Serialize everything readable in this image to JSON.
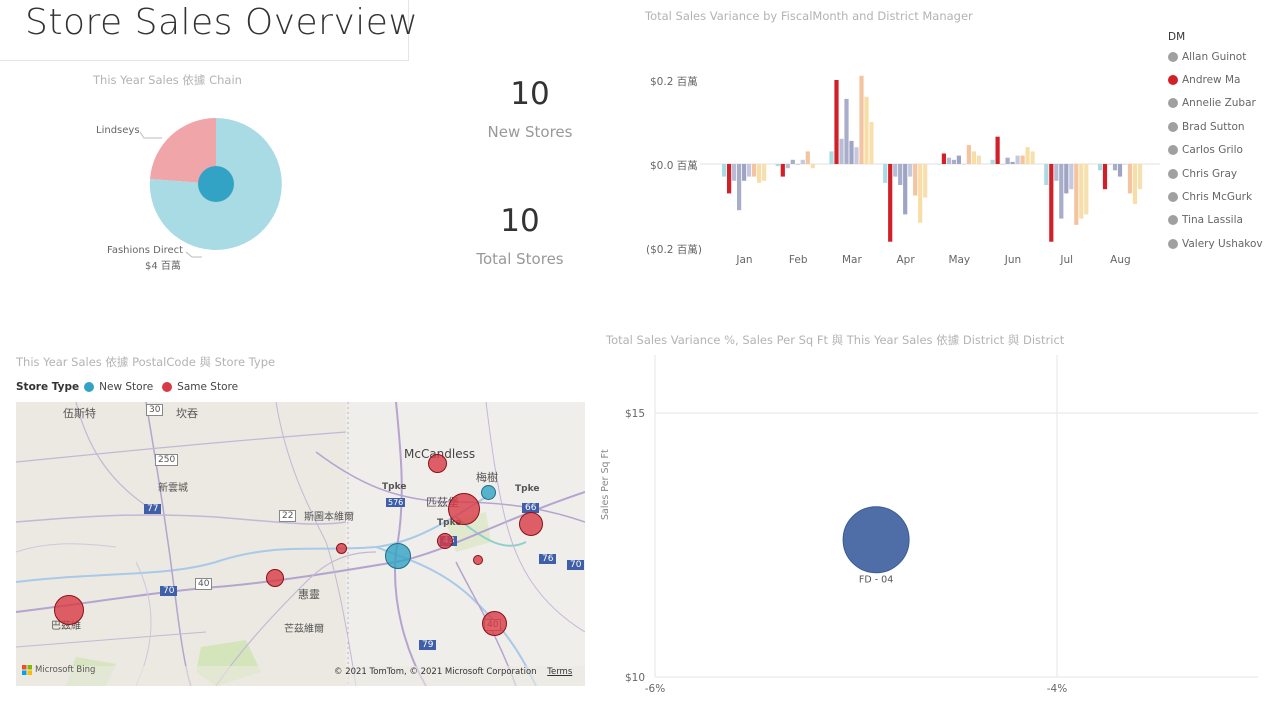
{
  "header": {
    "title": "Store Sales Overview"
  },
  "pie": {
    "title": "This Year Sales 依據 Chain",
    "labels": {
      "lindseys": "Lindseys",
      "fashions": "Fashions Direct",
      "fashions_value": "$4 百萬"
    },
    "colors": {
      "lindseys": "#f0a5a9",
      "fashions": "#a9dbe4",
      "center": "#32a3c4"
    }
  },
  "cards": {
    "new_stores_value": "10",
    "new_stores_label": "New Stores",
    "total_stores_value": "10",
    "total_stores_label": "Total Stores"
  },
  "variance": {
    "title": "Total Sales Variance by FiscalMonth and District Manager",
    "legend_title": "DM",
    "y_ticks": [
      "$0.2 百萬",
      "$0.0 百萬",
      "($0.2 百萬)"
    ]
  },
  "chart_data": [
    {
      "type": "bar",
      "title": "Total Sales Variance by FiscalMonth and District Manager",
      "categories": [
        "Jan",
        "Feb",
        "Mar",
        "Apr",
        "May",
        "Jun",
        "Jul",
        "Aug"
      ],
      "ylim": [
        -0.2,
        0.2
      ],
      "y_ticks": [
        0.2,
        0.0,
        -0.2
      ],
      "legend_position": "right",
      "series": [
        {
          "name": "Allan Guinot",
          "color": "#a9dbe4",
          "values": [
            -0.03,
            -0.005,
            0.03,
            -0.045,
            0.0,
            0.01,
            -0.05,
            -0.015
          ]
        },
        {
          "name": "Andrew Ma",
          "color": "#d12028",
          "values": [
            -0.07,
            -0.03,
            0.2,
            -0.185,
            0.025,
            0.065,
            -0.185,
            -0.06
          ]
        },
        {
          "name": "Annelie Zubar",
          "color": "#b8bdd6",
          "values": [
            -0.04,
            -0.01,
            0.06,
            -0.03,
            0.015,
            0.0,
            -0.04,
            0.0
          ]
        },
        {
          "name": "Brad Sutton",
          "color": "#a8adca",
          "values": [
            -0.11,
            0.01,
            0.155,
            -0.05,
            0.01,
            0.015,
            -0.13,
            -0.015
          ]
        },
        {
          "name": "Carlos Grilo",
          "color": "#9fa4c4",
          "values": [
            -0.04,
            0.0,
            0.055,
            -0.12,
            0.02,
            0.005,
            -0.07,
            -0.03
          ]
        },
        {
          "name": "Chris Gray",
          "color": "#c6c9de",
          "values": [
            -0.03,
            0.01,
            0.04,
            -0.03,
            0.0,
            0.02,
            -0.06,
            0.0
          ]
        },
        {
          "name": "Chris McGurk",
          "color": "#f4c4a0",
          "values": [
            -0.03,
            0.03,
            0.21,
            -0.075,
            0.045,
            0.02,
            -0.145,
            -0.07
          ]
        },
        {
          "name": "Tina Lassila",
          "color": "#f7dea6",
          "values": [
            -0.045,
            -0.01,
            0.16,
            -0.14,
            0.03,
            0.04,
            -0.13,
            -0.095
          ]
        },
        {
          "name": "Valery Ushakov",
          "color": "#f7e0b0",
          "values": [
            -0.04,
            0.0,
            0.1,
            -0.08,
            0.02,
            0.03,
            -0.12,
            -0.06
          ]
        }
      ]
    },
    {
      "type": "scatter",
      "title": "Total Sales Variance %, Sales Per Sq Ft 與 This Year Sales 依據 District 與 District",
      "xlabel": "",
      "ylabel": "Sales Per Sq Ft",
      "x_ticks": [
        "-6%",
        "-4%"
      ],
      "y_ticks": [
        "$15",
        "$10"
      ],
      "ylim": [
        10,
        15
      ],
      "points": [
        {
          "label": "FD - 04",
          "x": -4.9,
          "y": 12.6,
          "color": "#4f6ea8"
        }
      ]
    }
  ],
  "map": {
    "title": "This Year Sales 依據 PostalCode 與 Store Type",
    "legend_title": "Store Type",
    "legend": [
      {
        "name": "New Store",
        "color": "#32a3c4"
      },
      {
        "name": "Same Store",
        "color": "#d83a45"
      }
    ],
    "place_labels": {
      "mccandless": "McCandless",
      "meishu": "梅樹",
      "town1": "伍斯特",
      "town2": "坎吞",
      "town3": "新雲城",
      "town4": "斯圖本維爾",
      "town5": "匹茲堡",
      "town6": "惠靈",
      "town7": "芒茲維爾",
      "town8": "巴茲維",
      "tpke1": "Tpke",
      "tpke2": "Tpke",
      "tpke3": "Tpke"
    },
    "shields": [
      "30",
      "250",
      "77",
      "22",
      "576",
      "43",
      "40",
      "70",
      "76",
      "70",
      "79",
      "40",
      "66"
    ],
    "attribution": "© 2021 TomTom, © 2021 Microsoft Corporation",
    "terms": "Terms",
    "bing": "Microsoft Bing"
  }
}
